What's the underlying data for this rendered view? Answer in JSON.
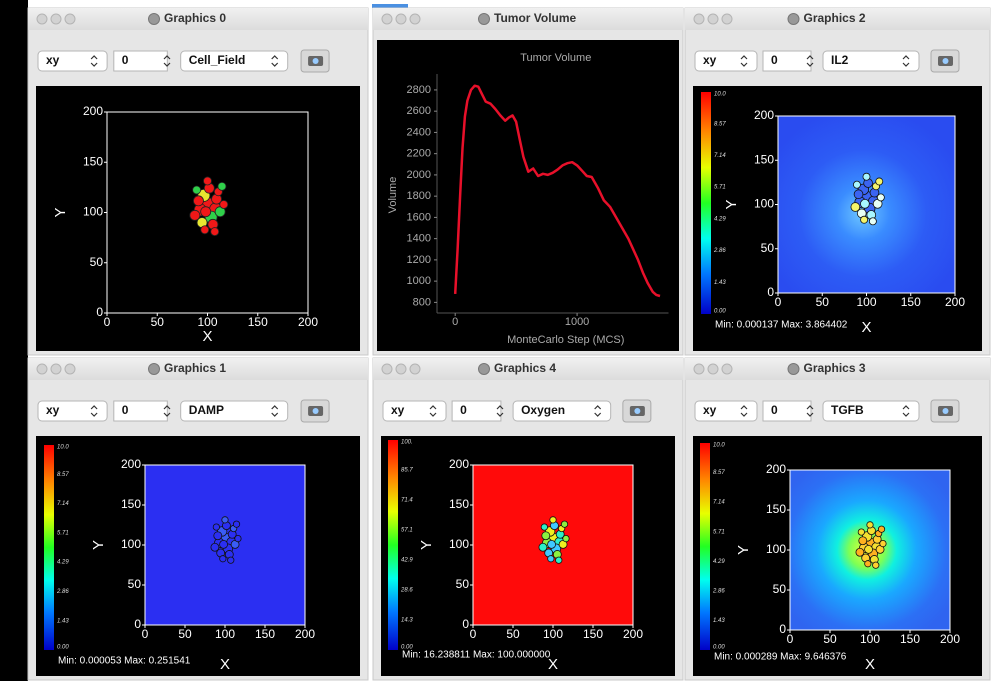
{
  "windows": [
    {
      "title": "Graphics 0",
      "toolbar": {
        "plane": "xy",
        "slice": "0",
        "field": "Cell_Field"
      },
      "plot": {
        "xlim": [
          0,
          200
        ],
        "ylim": [
          0,
          200
        ],
        "xticks": [
          0,
          50,
          100,
          150,
          200
        ],
        "yticks": [
          0,
          50,
          100,
          150,
          200
        ],
        "xlabel": "X",
        "ylabel": "Y"
      }
    },
    {
      "title": "Tumor Volume",
      "chart": {
        "type": "line",
        "title": "Tumor Volume",
        "xlabel": "MonteCarlo Step (MCS)",
        "ylabel": "Volume",
        "color": "#e8102a",
        "xlim": [
          -100,
          1750
        ],
        "ylim": [
          700,
          2950
        ],
        "xticks": [
          0,
          1000
        ],
        "yticks": [
          800,
          1000,
          1200,
          1400,
          1600,
          1800,
          2000,
          2200,
          2400,
          2600,
          2800
        ],
        "x": [
          0,
          20,
          40,
          60,
          80,
          100,
          130,
          160,
          190,
          220,
          250,
          290,
          330,
          370,
          410,
          440,
          470,
          500,
          530,
          560,
          600,
          640,
          680,
          720,
          760,
          800,
          840,
          880,
          920,
          960,
          1000,
          1040,
          1080,
          1120,
          1170,
          1220,
          1270,
          1320,
          1370,
          1420,
          1460,
          1500,
          1540,
          1580,
          1620,
          1650,
          1680
        ],
        "values": [
          880,
          1300,
          1800,
          2250,
          2550,
          2700,
          2800,
          2840,
          2830,
          2760,
          2690,
          2670,
          2620,
          2560,
          2510,
          2540,
          2560,
          2500,
          2330,
          2170,
          2030,
          2060,
          1990,
          2010,
          2000,
          2020,
          2050,
          2090,
          2110,
          2120,
          2090,
          2040,
          1990,
          1980,
          1880,
          1760,
          1700,
          1600,
          1500,
          1400,
          1300,
          1200,
          1080,
          980,
          900,
          870,
          860
        ]
      }
    },
    {
      "title": "Graphics 2",
      "toolbar": {
        "plane": "xy",
        "slice": "0",
        "field": "IL2"
      },
      "plot": {
        "xlim": [
          0,
          200
        ],
        "ylim": [
          0,
          200
        ],
        "xticks": [
          0,
          50,
          100,
          150,
          200
        ],
        "yticks": [
          0,
          50,
          100,
          150,
          200
        ],
        "xlabel": "X",
        "ylabel": "Y"
      },
      "colorbar": [
        "0.00",
        "1.43",
        "2.86",
        "4.29",
        "5.71",
        "7.14",
        "8.57",
        "10.0"
      ],
      "range_text": "Min: 0.000137 Max: 3.864402"
    },
    {
      "title": "Graphics 1",
      "toolbar": {
        "plane": "xy",
        "slice": "0",
        "field": "DAMP"
      },
      "plot": {
        "xlim": [
          0,
          200
        ],
        "ylim": [
          0,
          200
        ],
        "xticks": [
          0,
          50,
          100,
          150,
          200
        ],
        "yticks": [
          0,
          50,
          100,
          150,
          200
        ],
        "xlabel": "X",
        "ylabel": "Y"
      },
      "colorbar": [
        "0.00",
        "1.43",
        "2.86",
        "4.29",
        "5.71",
        "7.14",
        "8.57",
        "10.0"
      ],
      "range_text": "Min: 0.000053 Max: 0.251541"
    },
    {
      "title": "Graphics 4",
      "toolbar": {
        "plane": "xy",
        "slice": "0",
        "field": "Oxygen"
      },
      "plot": {
        "xlim": [
          0,
          200
        ],
        "ylim": [
          0,
          200
        ],
        "xticks": [
          0,
          50,
          100,
          150,
          200
        ],
        "yticks": [
          0,
          50,
          100,
          150,
          200
        ],
        "xlabel": "X",
        "ylabel": "Y"
      },
      "colorbar": [
        "0.00",
        "14.3",
        "28.6",
        "42.9",
        "57.1",
        "71.4",
        "85.7",
        "100."
      ],
      "range_text": "Min: 16.238811 Max: 100.000000"
    },
    {
      "title": "Graphics 3",
      "toolbar": {
        "plane": "xy",
        "slice": "0",
        "field": "TGFB"
      },
      "plot": {
        "xlim": [
          0,
          200
        ],
        "ylim": [
          0,
          200
        ],
        "xticks": [
          0,
          50,
          100,
          150,
          200
        ],
        "yticks": [
          0,
          50,
          100,
          150,
          200
        ],
        "xlabel": "X",
        "ylabel": "Y"
      },
      "colorbar": [
        "0.00",
        "1.43",
        "2.86",
        "4.29",
        "5.71",
        "7.14",
        "8.57",
        "10.0"
      ],
      "range_text": "Min: 0.000289 Max: 9.646376"
    }
  ]
}
